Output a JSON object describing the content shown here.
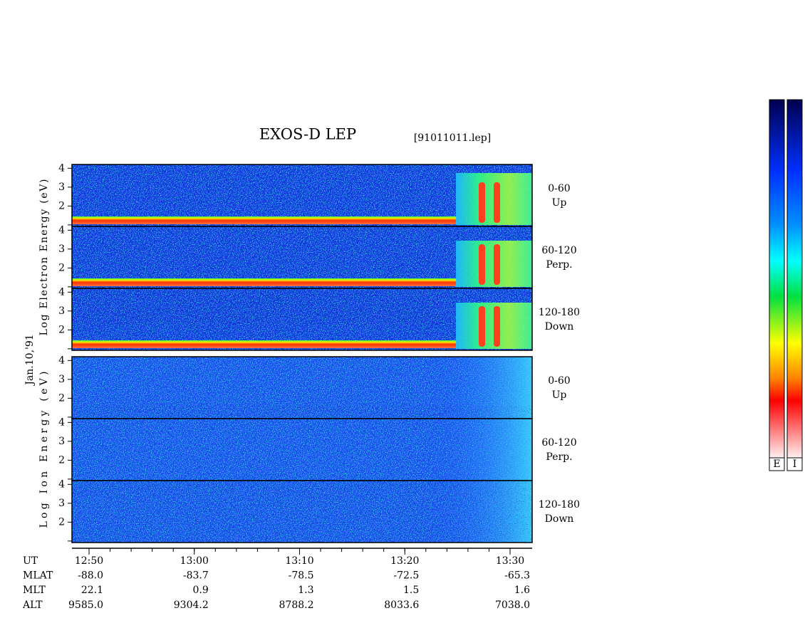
{
  "chart_data": {
    "type": "spectrogram",
    "title": "EXOS-D LEP",
    "file": "[91011011.lep]",
    "date": "Jan.10,'91",
    "ylim": [
      0.92,
      4.2
    ],
    "yticks": [
      2,
      3,
      4
    ],
    "groups": [
      {
        "ylabel": "Log Electron Energy (eV)",
        "panels": [
          {
            "range": "0-60",
            "direction": "Up"
          },
          {
            "range": "60-120",
            "direction": "Perp."
          },
          {
            "range": "120-180",
            "direction": "Down"
          }
        ]
      },
      {
        "ylabel": "Log Ion Energy (eV)",
        "panels": [
          {
            "range": "0-60",
            "direction": "Up"
          },
          {
            "range": "60-120",
            "direction": "Perp."
          },
          {
            "range": "120-180",
            "direction": "Down"
          }
        ]
      }
    ],
    "colorbar_labels": [
      "E",
      "I"
    ],
    "ephemeris": {
      "rows": [
        {
          "label": "UT",
          "values": [
            "12:50",
            "13:00",
            "13:10",
            "13:20",
            "13:30"
          ]
        },
        {
          "label": "MLAT",
          "values": [
            "-88.0",
            "-83.7",
            "-78.5",
            "-72.5",
            "-65.3"
          ]
        },
        {
          "label": "MLT",
          "values": [
            "22.1",
            "0.9",
            "1.3",
            "1.5",
            "1.6"
          ]
        },
        {
          "label": "ALT",
          "values": [
            "9585.0",
            "9304.2",
            "8788.2",
            "8033.6",
            "7038.0"
          ]
        }
      ]
    }
  }
}
